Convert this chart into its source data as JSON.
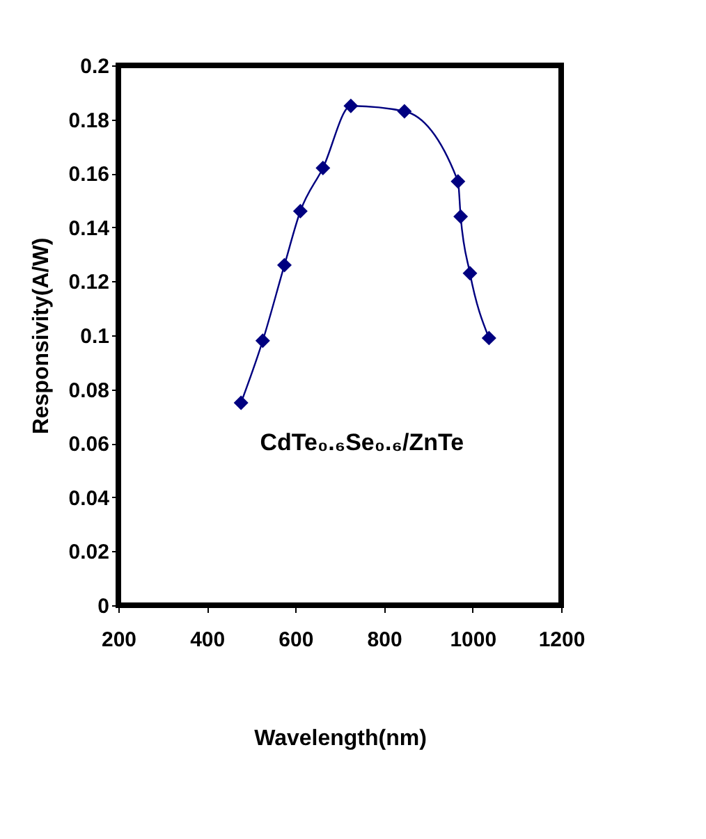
{
  "chart_data": {
    "type": "line",
    "xlabel": "Wavelength(nm)",
    "ylabel": "Responsivity(A/W)",
    "x": [
      477,
      526,
      575,
      611,
      662,
      725,
      846,
      967,
      973,
      994,
      1037
    ],
    "series": [
      {
        "color": "#000080",
        "values": [
          0.075,
          0.098,
          0.126,
          0.146,
          0.162,
          0.185,
          0.183,
          0.157,
          0.144,
          0.123,
          0.099
        ]
      }
    ],
    "xlim": [
      200,
      1200
    ],
    "xticks": [
      200,
      400,
      600,
      800,
      1000,
      1200
    ],
    "ylim": [
      0,
      0.2
    ],
    "yticks": [
      0,
      0.02,
      0.04,
      0.06,
      0.08,
      0.1,
      0.12,
      0.14,
      0.16,
      0.18,
      0.2
    ],
    "annotations": [
      "CdTe₀.₆Se₀.₆/ZnTe"
    ],
    "marker": "diamond",
    "line_style": "solid",
    "grid": false
  }
}
